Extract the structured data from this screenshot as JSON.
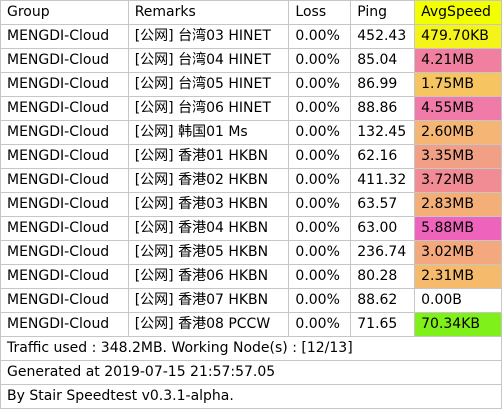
{
  "headers": [
    "Group",
    "Remarks",
    "Loss",
    "Ping",
    "AvgSpeed"
  ],
  "header_speed_color": "#f2ff00",
  "rows": [
    {
      "group": "MENGDI-Cloud",
      "remarks": "[公网] 台湾03 HINET",
      "loss": "0.00%",
      "ping": "452.43",
      "speed": "479.70KB",
      "color": "#f4f41a"
    },
    {
      "group": "MENGDI-Cloud",
      "remarks": "[公网] 台湾04 HINET",
      "loss": "0.00%",
      "ping": "85.04",
      "speed": "4.21MB",
      "color": "#f07fa0"
    },
    {
      "group": "MENGDI-Cloud",
      "remarks": "[公网] 台湾05 HINET",
      "loss": "0.00%",
      "ping": "86.99",
      "speed": "1.75MB",
      "color": "#f6c460"
    },
    {
      "group": "MENGDI-Cloud",
      "remarks": "[公网] 台湾06 HINET",
      "loss": "0.00%",
      "ping": "88.86",
      "speed": "4.55MB",
      "color": "#f07aa8"
    },
    {
      "group": "MENGDI-Cloud",
      "remarks": "[公网] 韩国01 Ms",
      "loss": "0.00%",
      "ping": "132.45",
      "speed": "2.60MB",
      "color": "#f5b574"
    },
    {
      "group": "MENGDI-Cloud",
      "remarks": "[公网] 香港01 HKBN",
      "loss": "0.00%",
      "ping": "62.16",
      "speed": "3.35MB",
      "color": "#f2a085"
    },
    {
      "group": "MENGDI-Cloud",
      "remarks": "[公网] 香港02 HKBN",
      "loss": "0.00%",
      "ping": "411.32",
      "speed": "3.72MB",
      "color": "#f18c95"
    },
    {
      "group": "MENGDI-Cloud",
      "remarks": "[公网] 香港03 HKBN",
      "loss": "0.00%",
      "ping": "63.57",
      "speed": "2.83MB",
      "color": "#f4ae78"
    },
    {
      "group": "MENGDI-Cloud",
      "remarks": "[公网] 香港04 HKBN",
      "loss": "0.00%",
      "ping": "63.00",
      "speed": "5.88MB",
      "color": "#ee64bc"
    },
    {
      "group": "MENGDI-Cloud",
      "remarks": "[公网] 香港05 HKBN",
      "loss": "0.00%",
      "ping": "236.74",
      "speed": "3.02MB",
      "color": "#f4a87d"
    },
    {
      "group": "MENGDI-Cloud",
      "remarks": "[公网] 香港06 HKBN",
      "loss": "0.00%",
      "ping": "80.28",
      "speed": "2.31MB",
      "color": "#f5ba6b"
    },
    {
      "group": "MENGDI-Cloud",
      "remarks": "[公网] 香港07 HKBN",
      "loss": "0.00%",
      "ping": "88.62",
      "speed": "0.00B",
      "color": "#ffffff"
    },
    {
      "group": "MENGDI-Cloud",
      "remarks": "[公网] 香港08 PCCW",
      "loss": "0.00%",
      "ping": "71.65",
      "speed": "70.34KB",
      "color": "#7ff01a"
    }
  ],
  "footer": {
    "traffic": "Traffic used : 348.2MB. Working Node(s) : [12/13]",
    "generated": "Generated at 2019-07-15 21:57:57.05",
    "by": "By Stair Speedtest v0.3.1-alpha."
  }
}
